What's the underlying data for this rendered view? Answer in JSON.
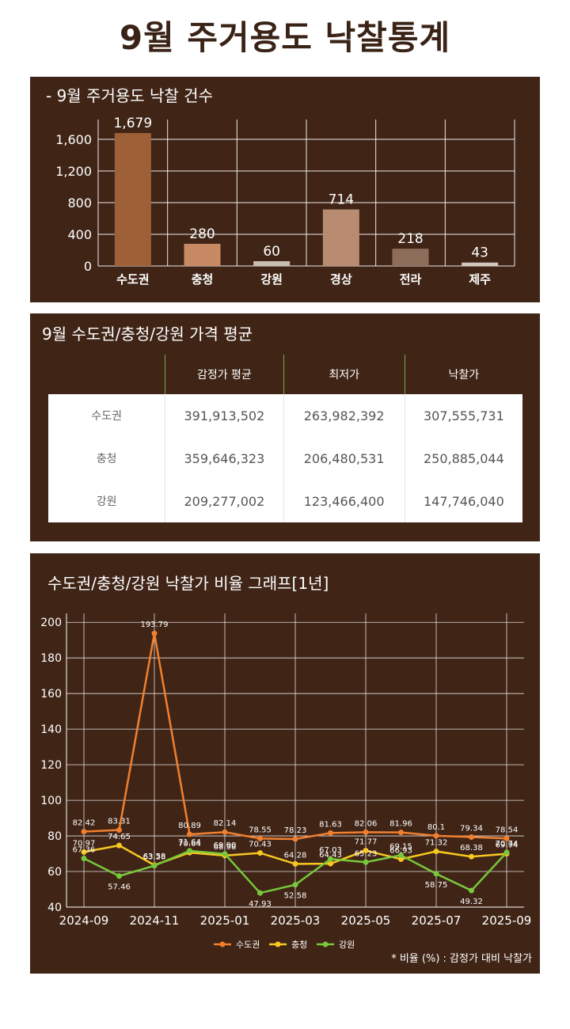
{
  "page": {
    "title": "9월 주거용도 낙찰통계"
  },
  "colors": {
    "panel_bg": "#402517",
    "title_color": "#3a2316",
    "sudogwon": "#f08030",
    "chungcheong": "#f8c820",
    "gangwon": "#78c83c"
  },
  "section1": {
    "title": "- 9월 주거용도 낙찰 건수"
  },
  "section2": {
    "title": "9월 수도권/충청/강원 가격 평균",
    "headers": [
      "",
      "감정가 평균",
      "최저가",
      "낙찰가"
    ],
    "rows": [
      {
        "region": "수도권",
        "appraisal": "391,913,502",
        "minimum": "263,982,392",
        "winning": "307,555,731"
      },
      {
        "region": "충청",
        "appraisal": "359,646,323",
        "minimum": "206,480,531",
        "winning": "250,885,044"
      },
      {
        "region": "강원",
        "appraisal": "209,277,002",
        "minimum": "123,466,400",
        "winning": "147,746,040"
      }
    ]
  },
  "section3": {
    "title": "수도권/충청/강원 낙찰가 비율 그래프[1년]",
    "footnote": "* 비율 (%) : 감정가 대비 낙찰가"
  },
  "chart_data": [
    {
      "type": "bar",
      "categories": [
        "수도권",
        "충청",
        "강원",
        "경상",
        "전라",
        "제주"
      ],
      "values": [
        1679,
        280,
        60,
        714,
        218,
        43
      ],
      "value_labels": [
        "1,679",
        "280",
        "60",
        "714",
        "218",
        "43"
      ],
      "bar_colors": [
        "#9e6037",
        "#c88a64",
        "#c9bcb2",
        "#b98c72",
        "#8d6e5b",
        "#d2c8be"
      ],
      "yticks": [
        0,
        400,
        800,
        1200,
        1600
      ],
      "ytick_labels": [
        "0",
        "400",
        "800",
        "1,200",
        "1,600"
      ],
      "ylim": [
        0,
        1850
      ],
      "grid": true
    },
    {
      "type": "line",
      "x": [
        "2024-09",
        "2024-10",
        "2024-11",
        "2024-12",
        "2025-01",
        "2025-02",
        "2025-03",
        "2025-04",
        "2025-05",
        "2025-06",
        "2025-07",
        "2025-08",
        "2025-09"
      ],
      "xtick_labels": [
        "2024-09",
        "2024-11",
        "2025-01",
        "2025-03",
        "2025-05",
        "2025-07",
        "2025-09"
      ],
      "yticks": [
        40,
        60,
        80,
        100,
        120,
        140,
        160,
        180,
        200
      ],
      "ylim": [
        40,
        205
      ],
      "series": [
        {
          "name": "수도권",
          "color": "#f08030",
          "values": [
            82.42,
            83.31,
            193.79,
            80.89,
            82.14,
            78.55,
            78.23,
            81.63,
            82.06,
            81.96,
            80.1,
            79.34,
            78.54
          ],
          "labels": [
            "82.42",
            "83.31",
            "193.79",
            "80.89",
            "82.14",
            "78.55",
            "78.23",
            "81.63",
            "82.06",
            "81.96",
            "80.1",
            "79.34",
            "78.54"
          ]
        },
        {
          "name": "충청",
          "color": "#f8c820",
          "values": [
            70.97,
            74.65,
            63.58,
            70.64,
            68.98,
            70.43,
            64.28,
            64.43,
            71.77,
            66.93,
            71.32,
            68.38,
            69.94
          ],
          "labels": [
            "70.97",
            "74.65",
            "63.58",
            "70.64",
            "68.98",
            "70.43",
            "64.28",
            "64.43",
            "71.77",
            "66.93",
            "71.32",
            "68.38",
            "69.94"
          ]
        },
        {
          "name": "강원",
          "color": "#78c83c",
          "values": [
            67.36,
            57.46,
            63.28,
            71.64,
            69.9,
            47.93,
            52.58,
            67.03,
            65.23,
            69.15,
            58.75,
            49.32,
            70.74
          ],
          "labels": [
            "67.36",
            "57.46",
            "63.28",
            "71.64",
            "69.90",
            "47.93",
            "52.58",
            "67.03",
            "65.23",
            "69.15",
            "58.75",
            "49.32",
            "70.74"
          ]
        }
      ],
      "legend_position": "bottom-center",
      "grid": true
    }
  ]
}
